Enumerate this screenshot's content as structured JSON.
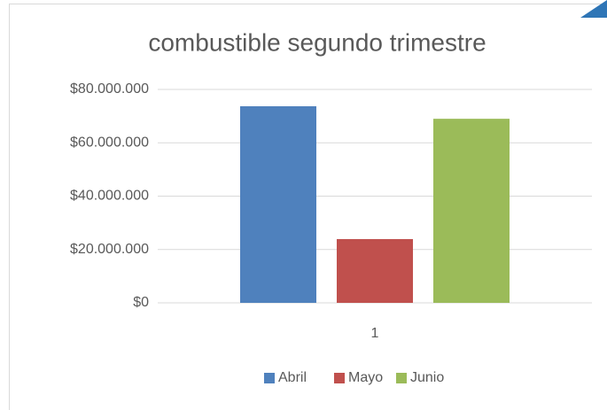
{
  "chart_data": {
    "type": "bar",
    "title": "combustible segundo trimestre",
    "categories": [
      "1"
    ],
    "series": [
      {
        "name": "Abril",
        "color": "#4f81bd",
        "values": [
          73700000
        ]
      },
      {
        "name": "Mayo",
        "color": "#c0504d",
        "values": [
          23900000
        ]
      },
      {
        "name": "Junio",
        "color": "#9bbb59",
        "values": [
          69000000
        ]
      }
    ],
    "ylim": [
      0,
      80000000
    ],
    "yticks": [
      {
        "value": 0,
        "label": "$0"
      },
      {
        "value": 20000000,
        "label": "$20.000.000"
      },
      {
        "value": 40000000,
        "label": "$40.000.000"
      },
      {
        "value": 60000000,
        "label": "$60.000.000"
      },
      {
        "value": 80000000,
        "label": "$80.000.000"
      }
    ],
    "grid": true,
    "legend": "bottom"
  }
}
